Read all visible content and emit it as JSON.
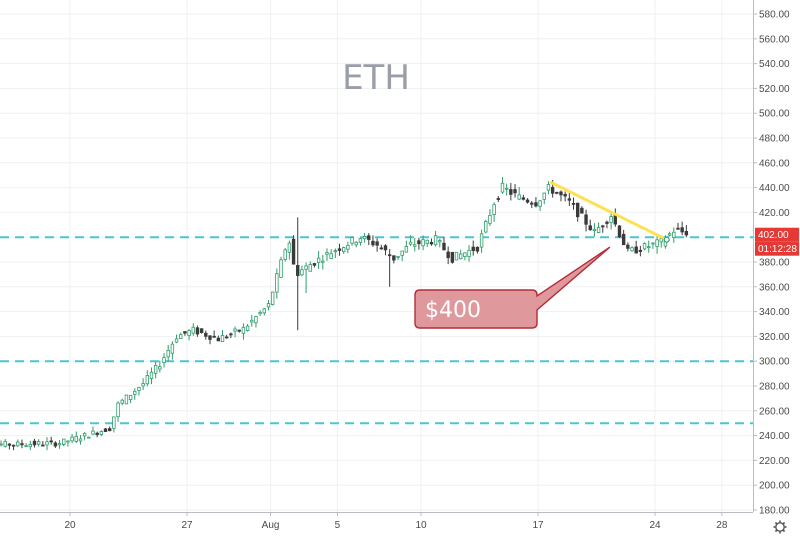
{
  "chart_data": {
    "type": "candlestick",
    "title": "ETH",
    "y_ticks": [
      180,
      200,
      220,
      240,
      260,
      280,
      300,
      320,
      340,
      360,
      380,
      400,
      420,
      440,
      460,
      480,
      500,
      520,
      540,
      560,
      580
    ],
    "y_tick_labels": [
      "180.00",
      "200.00",
      "220.00",
      "240.00",
      "260.00",
      "280.00",
      "300.00",
      "320.00",
      "340.00",
      "360.00",
      "380.00",
      "400.00",
      "420.00",
      "440.00",
      "460.00",
      "480.00",
      "500.00",
      "520.00",
      "540.00",
      "560.00",
      "580.00"
    ],
    "ylim": [
      180,
      590
    ],
    "x_ticks": [
      {
        "day": 20,
        "label": "20"
      },
      {
        "day": 27,
        "label": "27"
      },
      {
        "day": 32,
        "label": "Aug"
      },
      {
        "day": 36,
        "label": "5"
      },
      {
        "day": 41,
        "label": "10"
      },
      {
        "day": 48,
        "label": "17"
      },
      {
        "day": 55,
        "label": "24"
      },
      {
        "day": 59,
        "label": "28"
      }
    ],
    "xlim": [
      14,
      63
    ],
    "grid": true,
    "horizontal_levels": [
      {
        "price": 400,
        "color": "#4dc3d6"
      },
      {
        "price": 300,
        "color": "#4dc3d6"
      },
      {
        "price": 250,
        "color": "#4dc3d6"
      }
    ],
    "trendline": {
      "start": {
        "day": 48.8,
        "price": 444
      },
      "end": {
        "day": 55.7,
        "price": 398
      },
      "color": "#ffe14f"
    },
    "last_price": {
      "label": "402.00",
      "price": 402
    },
    "countdown": {
      "label": "01:12:28"
    },
    "callout": {
      "text": "$400",
      "pointer": {
        "day": 52.3,
        "price": 392
      }
    },
    "key_points": [
      {
        "day": 14.0,
        "price": 233
      },
      {
        "day": 17.0,
        "price": 233
      },
      {
        "day": 19.5,
        "price": 234
      },
      {
        "day": 21.0,
        "price": 240
      },
      {
        "day": 22.5,
        "price": 246
      },
      {
        "day": 23.0,
        "price": 265
      },
      {
        "day": 24.5,
        "price": 282
      },
      {
        "day": 25.5,
        "price": 298
      },
      {
        "day": 26.5,
        "price": 320
      },
      {
        "day": 27.5,
        "price": 325
      },
      {
        "day": 29.0,
        "price": 318
      },
      {
        "day": 30.5,
        "price": 326
      },
      {
        "day": 32.0,
        "price": 345
      },
      {
        "day": 33.2,
        "price": 400
      },
      {
        "day": 33.6,
        "price": 370
      },
      {
        "day": 34.5,
        "price": 378
      },
      {
        "day": 36.0,
        "price": 390
      },
      {
        "day": 37.5,
        "price": 400
      },
      {
        "day": 38.5,
        "price": 394
      },
      {
        "day": 39.5,
        "price": 383
      },
      {
        "day": 40.5,
        "price": 394
      },
      {
        "day": 42.0,
        "price": 398
      },
      {
        "day": 43.0,
        "price": 383
      },
      {
        "day": 44.5,
        "price": 392
      },
      {
        "day": 45.5,
        "price": 428
      },
      {
        "day": 46.0,
        "price": 440
      },
      {
        "day": 47.0,
        "price": 432
      },
      {
        "day": 48.0,
        "price": 428
      },
      {
        "day": 48.8,
        "price": 440
      },
      {
        "day": 50.0,
        "price": 428
      },
      {
        "day": 51.5,
        "price": 404
      },
      {
        "day": 52.5,
        "price": 418
      },
      {
        "day": 53.5,
        "price": 388
      },
      {
        "day": 54.5,
        "price": 392
      },
      {
        "day": 55.5,
        "price": 396
      },
      {
        "day": 56.3,
        "price": 406
      },
      {
        "day": 56.8,
        "price": 404
      }
    ]
  }
}
